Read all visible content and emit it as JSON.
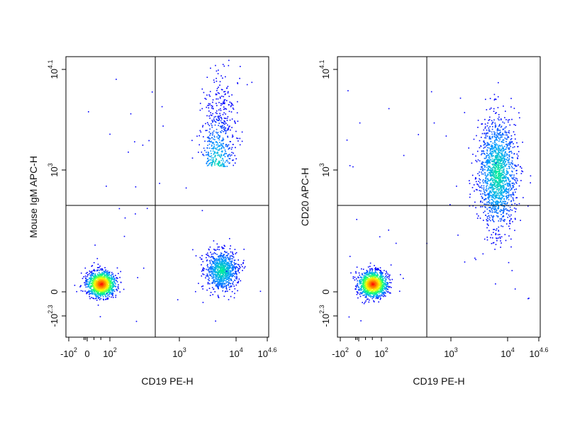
{
  "chart_data": [
    {
      "type": "scatter",
      "subtype": "flow-cytometry-density-dot-plot",
      "xlabel": "CD19 PE-H",
      "ylabel": "Mouse IgM APC-H",
      "x_scale": "biexponential",
      "y_scale": "biexponential",
      "x_range": [
        -100,
        39811
      ],
      "y_range": [
        -200,
        12589
      ],
      "x_ticks": [
        {
          "base": "-10",
          "exp": "2",
          "value": -100
        },
        {
          "base": "0",
          "exp": "",
          "value": 0
        },
        {
          "base": "10",
          "exp": "2",
          "value": 100
        },
        {
          "base": "10",
          "exp": "3",
          "value": 1000
        },
        {
          "base": "10",
          "exp": "4",
          "value": 10000
        },
        {
          "base": "10",
          "exp": "4.6",
          "value": 39811
        }
      ],
      "y_ticks": [
        {
          "base": "-10",
          "exp": "2.3",
          "value": -200
        },
        {
          "base": "0",
          "exp": "",
          "value": 0
        },
        {
          "base": "10",
          "exp": "3",
          "value": 1000
        },
        {
          "base": "10",
          "exp": "4.1",
          "value": 12589
        }
      ],
      "quadrant_gate": {
        "x": 450,
        "y": 300
      },
      "populations": [
        {
          "x_center": 60,
          "y_center": 15,
          "points": 1200
        },
        {
          "x_center": 5500,
          "y_center": 40,
          "points": 900
        },
        {
          "x_center": 4500,
          "y_center": 900,
          "points": 500
        }
      ],
      "grid": false,
      "colormap": [
        "#0000ff",
        "#00a0ff",
        "#00ff80",
        "#ffff00",
        "#ff8000",
        "#ff0000"
      ]
    },
    {
      "type": "scatter",
      "subtype": "flow-cytometry-density-dot-plot",
      "xlabel": "CD19 PE-H",
      "ylabel": "CD20 APC-H",
      "x_scale": "biexponential",
      "y_scale": "biexponential",
      "x_range": [
        -100,
        39811
      ],
      "y_range": [
        -200,
        12589
      ],
      "x_ticks": [
        {
          "base": "-10",
          "exp": "2",
          "value": -100
        },
        {
          "base": "0",
          "exp": "",
          "value": 0
        },
        {
          "base": "10",
          "exp": "2",
          "value": 100
        },
        {
          "base": "10",
          "exp": "3",
          "value": 1000
        },
        {
          "base": "10",
          "exp": "4",
          "value": 10000
        },
        {
          "base": "10",
          "exp": "4.6",
          "value": 39811
        }
      ],
      "y_ticks": [
        {
          "base": "-10",
          "exp": "2.3",
          "value": -200
        },
        {
          "base": "0",
          "exp": "",
          "value": 0
        },
        {
          "base": "10",
          "exp": "3",
          "value": 1000
        },
        {
          "base": "10",
          "exp": "4.1",
          "value": 12589
        }
      ],
      "quadrant_gate": {
        "x": 450,
        "y": 300
      },
      "populations": [
        {
          "x_center": 60,
          "y_center": 15,
          "points": 1300
        },
        {
          "x_center": 6500,
          "y_center": 900,
          "points": 1600
        }
      ],
      "grid": false,
      "colormap": [
        "#0000ff",
        "#00a0ff",
        "#00ff80",
        "#ffff00",
        "#ff8000",
        "#ff0000"
      ]
    }
  ]
}
